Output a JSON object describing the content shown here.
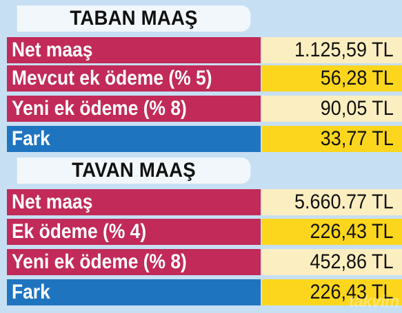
{
  "sections": [
    {
      "title": "TABAN MAAŞ",
      "rows": [
        {
          "label": "Net maaş",
          "value": "1.125,59 TL"
        },
        {
          "label": "Mevcut ek ödeme (% 5)",
          "value": "56,28 TL"
        },
        {
          "label": "Yeni ek ödeme (% 8)",
          "value": "90,05 TL"
        },
        {
          "label": "Fark",
          "value": "33,77 TL"
        }
      ]
    },
    {
      "title": "TAVAN MAAŞ",
      "rows": [
        {
          "label": "Net maaş",
          "value": "5.660.77 TL"
        },
        {
          "label": "Ek ödeme (% 4)",
          "value": "226,43 TL"
        },
        {
          "label": "Yeni ek ödeme (% 8)",
          "value": "452,86 TL"
        },
        {
          "label": "Fark",
          "value": "226,43 TL"
        }
      ]
    }
  ],
  "watermark": "takvim",
  "colors": {
    "background": "#c7dff3",
    "title_bg": "#f2f7fb",
    "label_primary": "#c12a59",
    "label_total": "#1f74bf",
    "value_light": "#fbeec0",
    "value_strong": "#fbd61c"
  }
}
